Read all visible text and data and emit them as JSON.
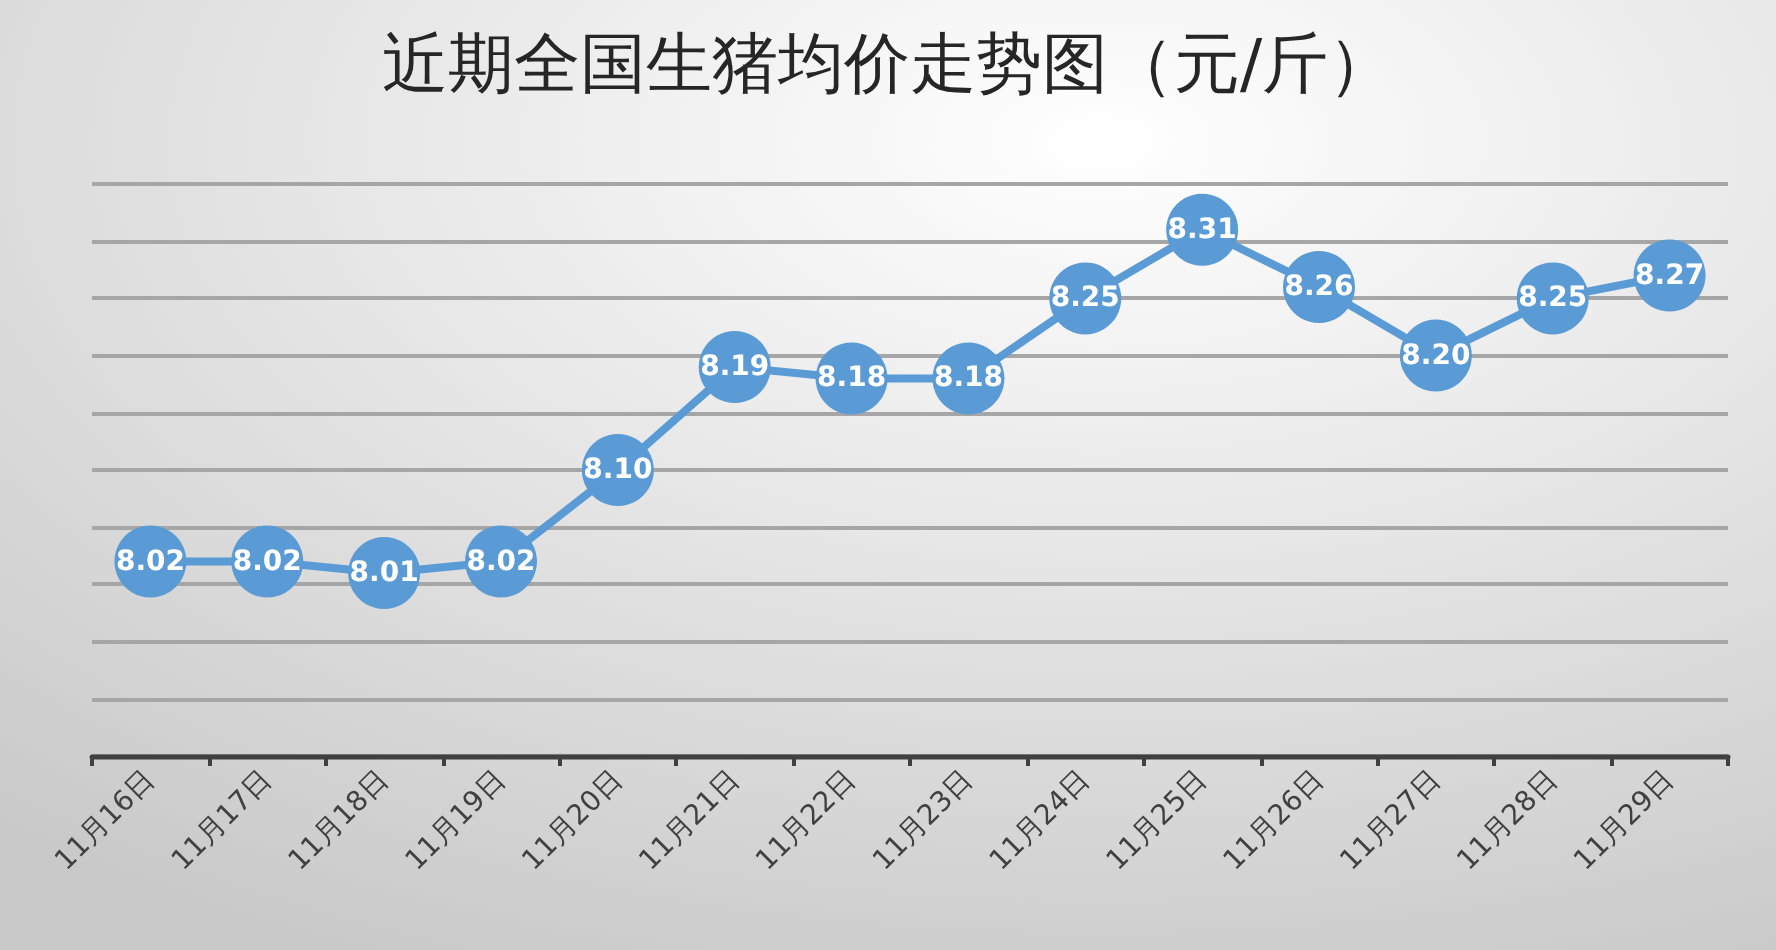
{
  "chart_data": {
    "type": "line",
    "title": "近期全国生猪均价走势图（元/斤）",
    "categories": [
      "11月16日",
      "11月17日",
      "11月18日",
      "11月19日",
      "11月20日",
      "11月21日",
      "11月22日",
      "11月23日",
      "11月24日",
      "11月25日",
      "11月26日",
      "11月27日",
      "11月28日",
      "11月29日"
    ],
    "series": [
      {
        "color": "#5b9bd5",
        "values": [
          8.02,
          8.02,
          8.01,
          8.02,
          8.1,
          8.19,
          8.18,
          8.18,
          8.25,
          8.31,
          8.26,
          8.2,
          8.25,
          8.27
        ],
        "value_labels": [
          "8.02",
          "8.02",
          "8.01",
          "8.02",
          "8.10",
          "8.19",
          "8.18",
          "8.18",
          "8.25",
          "8.31",
          "8.26",
          "8.20",
          "8.25",
          "8.27"
        ]
      }
    ],
    "ylim": [
      7.85,
      8.35
    ],
    "yticks": [
      {
        "value": 7.85,
        "label": null
      },
      {
        "value": 7.9,
        "label": null
      },
      {
        "value": 7.95,
        "label": null
      },
      {
        "value": 8.0,
        "label": null
      },
      {
        "value": 8.05,
        "label": null
      },
      {
        "value": 8.1,
        "label": null
      },
      {
        "value": 8.15,
        "label": null
      },
      {
        "value": 8.2,
        "label": null
      },
      {
        "value": 8.25,
        "label": null
      },
      {
        "value": 8.3,
        "label": null
      },
      {
        "value": 8.35,
        "label": null
      }
    ],
    "grid": "y",
    "tick_labels": "x",
    "marker": "circle",
    "line_style": "solid"
  }
}
